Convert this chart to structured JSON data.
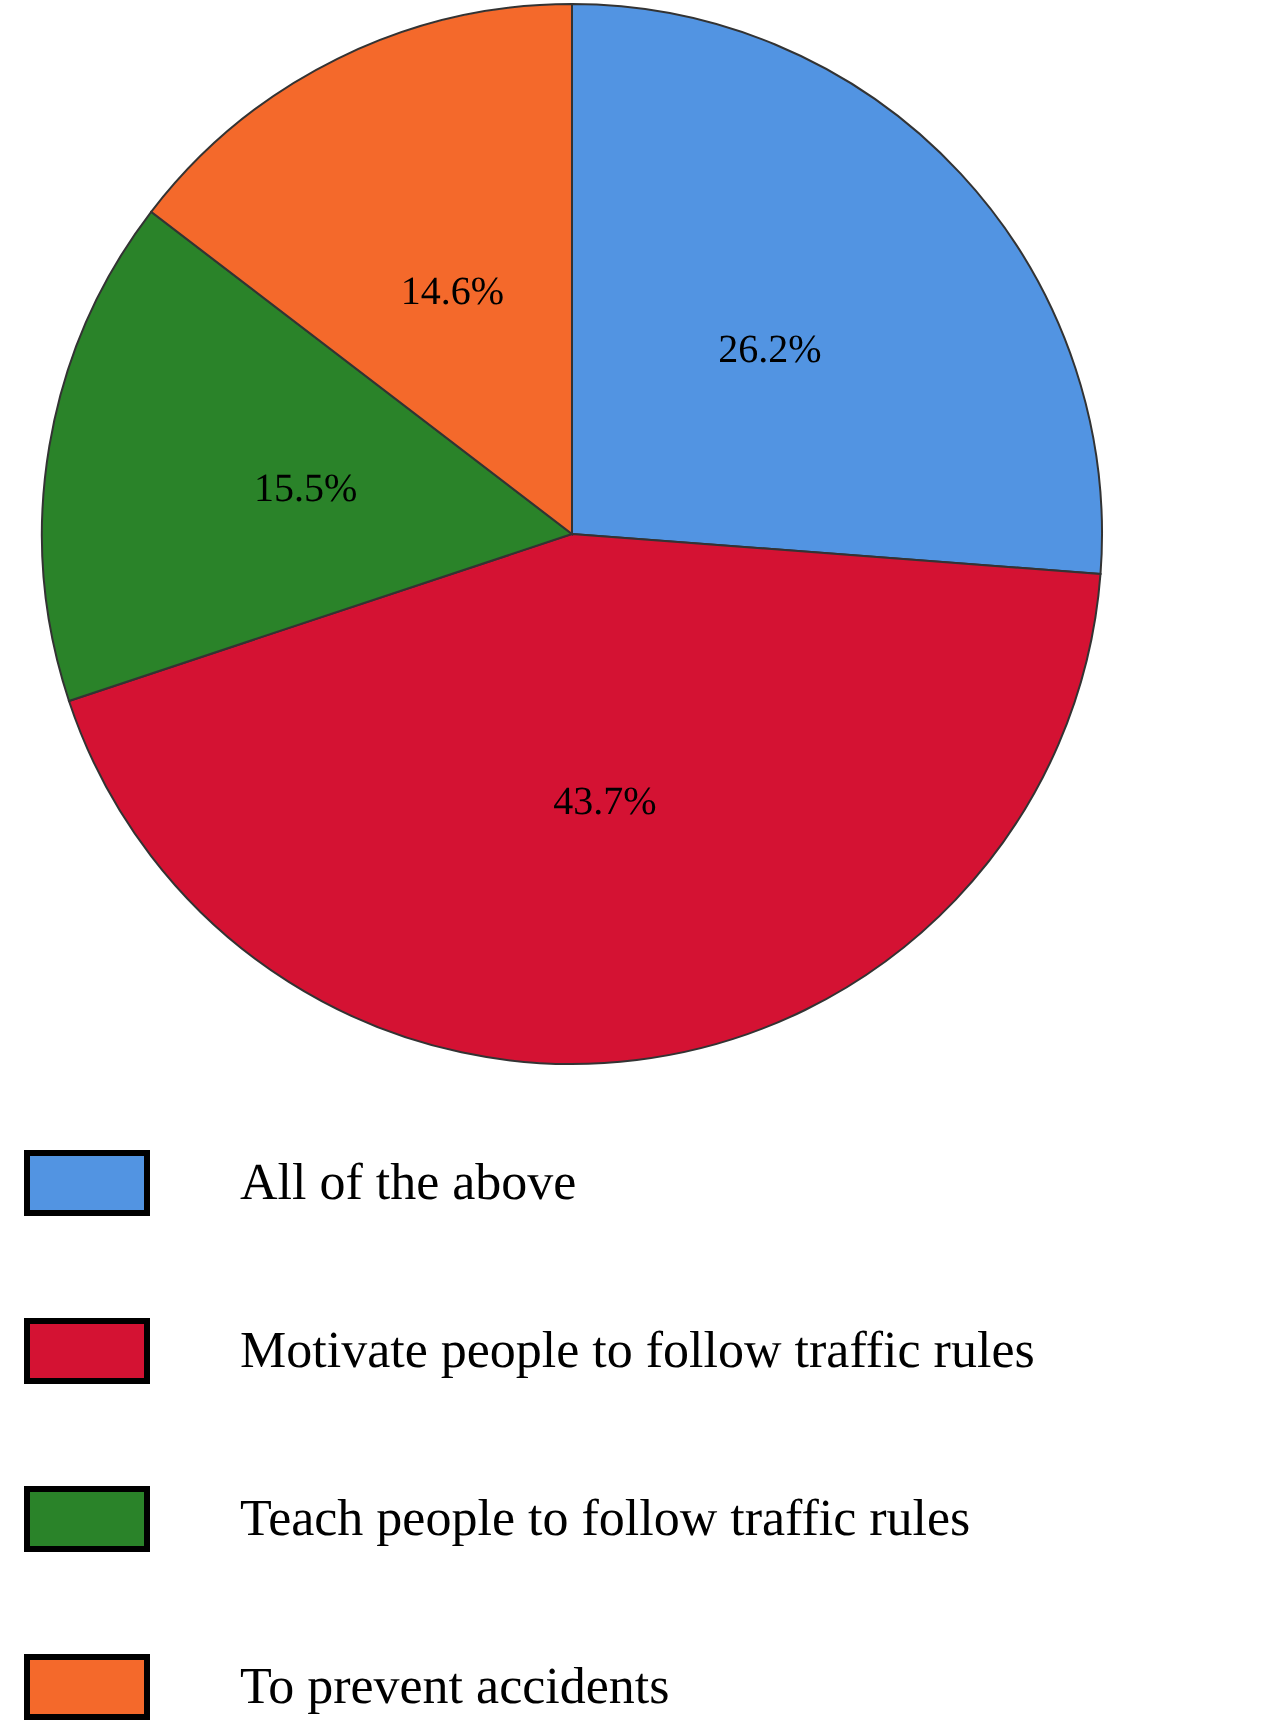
{
  "chart_data": {
    "type": "pie",
    "categories": [
      "All of the above",
      "Motivate people to follow traffic rules",
      "Teach people to follow traffic rules",
      "To prevent accidents"
    ],
    "values": [
      26.2,
      43.7,
      15.5,
      14.6
    ],
    "colors": [
      "#5294e2",
      "#d41233",
      "#2a8329",
      "#f4692b"
    ],
    "value_labels": [
      "26.2%",
      "43.7%",
      "15.5%",
      "14.6%"
    ],
    "legend": "bottom"
  }
}
